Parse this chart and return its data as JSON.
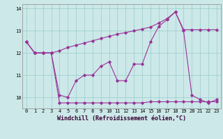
{
  "xlabel": "Windchill (Refroidissement éolien,°C)",
  "background_color": "#cce8e8",
  "line_color": "#993399",
  "hours": [
    0,
    1,
    2,
    3,
    4,
    5,
    6,
    7,
    8,
    9,
    10,
    11,
    12,
    13,
    14,
    15,
    16,
    17,
    18,
    19,
    20,
    21,
    22,
    23
  ],
  "line1": [
    12.5,
    12.0,
    12.0,
    12.0,
    10.1,
    10.0,
    10.75,
    11.0,
    11.0,
    11.4,
    11.6,
    10.75,
    10.75,
    11.5,
    11.5,
    12.5,
    13.2,
    13.5,
    13.85,
    13.0,
    10.1,
    9.9,
    9.75,
    9.9
  ],
  "line2": [
    12.5,
    12.0,
    12.0,
    12.0,
    12.1,
    12.25,
    12.35,
    12.45,
    12.55,
    12.65,
    12.75,
    12.85,
    12.92,
    13.0,
    13.08,
    13.17,
    13.35,
    13.55,
    13.85,
    13.05,
    13.05,
    13.05,
    13.05,
    13.05
  ],
  "line3": [
    12.5,
    12.0,
    12.0,
    12.0,
    9.75,
    9.75,
    9.75,
    9.75,
    9.75,
    9.75,
    9.75,
    9.75,
    9.75,
    9.75,
    9.75,
    9.8,
    9.8,
    9.8,
    9.8,
    9.8,
    9.8,
    9.8,
    9.8,
    9.8
  ],
  "ylim": [
    9.5,
    14.2
  ],
  "yticks": [
    10,
    11,
    12,
    13,
    14
  ],
  "grid_color": "#99cccc",
  "xlabel_color": "#330033",
  "xlabel_fontsize": 6.0,
  "tick_fontsize": 5.0
}
